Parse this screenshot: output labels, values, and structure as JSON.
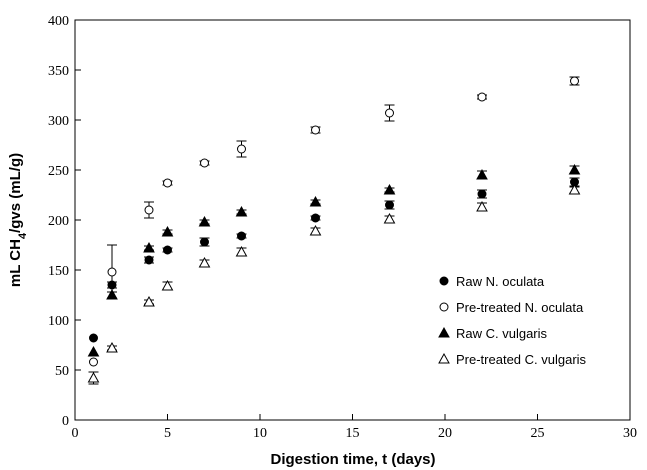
{
  "chart_data": {
    "type": "scatter",
    "xlabel": "Digestion time, t (days)",
    "ylabel": {
      "pre": "mL CH",
      "sub": "4",
      "post": "/gvs (mL/g)"
    },
    "xlim": [
      0,
      30
    ],
    "ylim": [
      0,
      400
    ],
    "xticks": [
      0,
      5,
      10,
      15,
      20,
      25,
      30
    ],
    "yticks": [
      0,
      50,
      100,
      150,
      200,
      250,
      300,
      350,
      400
    ],
    "grid": false,
    "legend_position": "bottom-right",
    "series": [
      {
        "name": "Raw N. oculata",
        "marker": "filled-circle",
        "color": "#000000",
        "x": [
          1,
          2,
          4,
          5,
          7,
          9,
          13,
          17,
          22,
          27
        ],
        "y": [
          82,
          135,
          160,
          170,
          178,
          184,
          202,
          215,
          226,
          238
        ],
        "err": [
          0,
          3,
          3,
          2,
          4,
          2,
          2,
          4,
          4,
          4
        ]
      },
      {
        "name": "Pre-treated N. oculata",
        "marker": "open-circle",
        "color": "#000000",
        "x": [
          1,
          2,
          4,
          5,
          7,
          9,
          13,
          17,
          22,
          27
        ],
        "y": [
          58,
          148,
          210,
          237,
          257,
          271,
          290,
          307,
          323,
          339
        ],
        "err": [
          0,
          27,
          8,
          2,
          2,
          8,
          3,
          8,
          2,
          4
        ]
      },
      {
        "name": "Raw C. vulgaris",
        "marker": "filled-triangle",
        "color": "#000000",
        "x": [
          1,
          2,
          4,
          5,
          7,
          9,
          13,
          17,
          22,
          27
        ],
        "y": [
          68,
          125,
          172,
          188,
          198,
          208,
          218,
          230,
          245,
          250
        ],
        "err": [
          0,
          3,
          2,
          2,
          2,
          2,
          2,
          2,
          4,
          4
        ]
      },
      {
        "name": "Pre-treated C. vulgaris",
        "marker": "open-triangle",
        "color": "#000000",
        "x": [
          1,
          2,
          4,
          5,
          7,
          9,
          13,
          17,
          22,
          27
        ],
        "y": [
          42,
          72,
          118,
          134,
          157,
          168,
          189,
          201,
          213,
          230
        ],
        "err": [
          6,
          2,
          2,
          4,
          3,
          4,
          3,
          3,
          4,
          3
        ]
      }
    ]
  }
}
